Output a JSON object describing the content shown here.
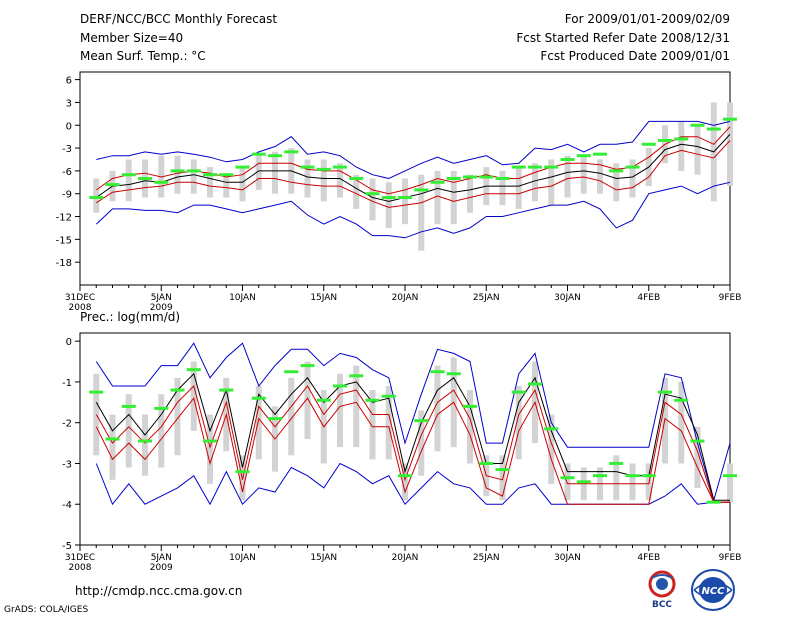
{
  "header": {
    "title": "DERF/NCC/BCC Monthly Forecast",
    "member_size": "Member Size=40",
    "variable": "Mean Surf. Temp.: °C",
    "period": "For 2009/01/01-2009/02/09",
    "started": "Fcst Started Refer Date 2008/12/31",
    "produced": "Fcst Produced Date 2009/01/01"
  },
  "footer": {
    "url": "http://cmdp.ncc.cma.gov.cn",
    "grads": "GrADS: COLA/IGES",
    "logo_bcc": "BCC",
    "logo_ncc": "NCC"
  },
  "chart_data": [
    {
      "type": "line",
      "title": "Mean Surf. Temp.: °C",
      "x_tick_labels": [
        "31DEC",
        "5JAN",
        "10JAN",
        "15JAN",
        "20JAN",
        "25JAN",
        "30JAN",
        "4FEB",
        "9FEB"
      ],
      "x_tick_sublabels": [
        "2008",
        "2009",
        "",
        "",
        "",
        "",
        "",
        "",
        ""
      ],
      "x_tick_day_index": [
        0,
        5,
        10,
        15,
        20,
        25,
        30,
        35,
        40
      ],
      "x_range": [
        0,
        40
      ],
      "ylim": [
        -21,
        7
      ],
      "y_ticks": [
        -18,
        -15,
        -12,
        -9,
        -6,
        -3,
        0,
        3,
        6
      ],
      "days": [
        1,
        2,
        3,
        4,
        5,
        6,
        7,
        8,
        9,
        10,
        11,
        12,
        13,
        14,
        15,
        16,
        17,
        18,
        19,
        20,
        21,
        22,
        23,
        24,
        25,
        26,
        27,
        28,
        29,
        30,
        31,
        32,
        33,
        34,
        35,
        36,
        37,
        38,
        39,
        40
      ],
      "series": [
        {
          "name": "max",
          "color": "#0000cc",
          "values": [
            -4.5,
            -4.0,
            -4.0,
            -3.5,
            -3.8,
            -3.5,
            -3.8,
            -4.2,
            -4.8,
            -4.5,
            -3.5,
            -2.8,
            -1.5,
            -3.8,
            -3.5,
            -4.0,
            -5.5,
            -6.5,
            -7.0,
            -6.0,
            -5.0,
            -4.2,
            -5.0,
            -4.5,
            -4.0,
            -5.2,
            -5.0,
            -3.0,
            -3.2,
            -2.5,
            -3.5,
            -2.5,
            -2.5,
            -2.2,
            0.5,
            0.5,
            0.5,
            0.5,
            0.0,
            0.5
          ]
        },
        {
          "name": "ensemble_upper",
          "color": "#cc0000",
          "values": [
            -8.5,
            -7.0,
            -6.5,
            -6.3,
            -6.8,
            -6.3,
            -6.0,
            -6.3,
            -6.8,
            -6.5,
            -5.0,
            -5.0,
            -5.0,
            -5.8,
            -6.0,
            -6.0,
            -7.2,
            -8.5,
            -9.0,
            -8.5,
            -7.8,
            -7.0,
            -7.5,
            -7.0,
            -6.5,
            -7.0,
            -7.0,
            -6.2,
            -5.5,
            -5.0,
            -5.0,
            -5.2,
            -5.8,
            -5.5,
            -4.2,
            -2.5,
            -1.5,
            -1.5,
            -2.5,
            -0.2
          ]
        },
        {
          "name": "ensemble_mean",
          "color": "#000000",
          "values": [
            -9.5,
            -8.0,
            -7.8,
            -7.3,
            -7.5,
            -6.8,
            -6.5,
            -7.0,
            -7.5,
            -7.5,
            -6.0,
            -6.0,
            -6.0,
            -6.8,
            -7.0,
            -7.0,
            -8.3,
            -9.5,
            -10.0,
            -9.5,
            -9.0,
            -8.3,
            -8.8,
            -8.5,
            -8.0,
            -8.0,
            -8.0,
            -7.3,
            -6.8,
            -6.2,
            -6.0,
            -6.3,
            -7.0,
            -6.8,
            -5.5,
            -3.2,
            -2.5,
            -2.8,
            -3.5,
            -1.2
          ]
        },
        {
          "name": "ensemble_lower",
          "color": "#cc0000",
          "values": [
            -10.2,
            -8.8,
            -8.5,
            -8.2,
            -8.0,
            -7.5,
            -7.5,
            -8.0,
            -8.2,
            -8.5,
            -7.0,
            -7.0,
            -7.5,
            -7.8,
            -8.0,
            -8.0,
            -9.0,
            -10.0,
            -10.8,
            -10.5,
            -10.2,
            -9.3,
            -10.0,
            -9.5,
            -9.0,
            -9.0,
            -9.0,
            -8.3,
            -8.0,
            -7.0,
            -6.8,
            -7.3,
            -8.5,
            -8.2,
            -6.8,
            -4.0,
            -3.3,
            -3.8,
            -4.3,
            -2.0
          ]
        },
        {
          "name": "min",
          "color": "#0000cc",
          "values": [
            -13.0,
            -11.0,
            -11.0,
            -11.2,
            -11.2,
            -11.5,
            -10.5,
            -10.5,
            -11.0,
            -11.5,
            -11.0,
            -10.5,
            -10.0,
            -11.8,
            -13.0,
            -12.0,
            -13.0,
            -14.5,
            -14.5,
            -14.8,
            -14.0,
            -13.5,
            -14.2,
            -13.5,
            -12.0,
            -12.0,
            -11.5,
            -11.0,
            -10.5,
            -10.5,
            -10.0,
            -11.0,
            -13.5,
            -12.5,
            -9.0,
            -8.5,
            -8.0,
            -9.0,
            -8.0,
            -7.5
          ]
        },
        {
          "name": "bar_top",
          "color": "#d3d3d3",
          "values": [
            -7.0,
            -6.0,
            -4.5,
            -4.5,
            -4.0,
            -4.0,
            -4.5,
            -5.5,
            -6.5,
            -5.5,
            -4.0,
            -3.5,
            -3.0,
            -4.5,
            -4.5,
            -5.0,
            -6.5,
            -7.0,
            -7.5,
            -7.0,
            -6.5,
            -6.0,
            -6.0,
            -6.5,
            -5.5,
            -6.0,
            -5.5,
            -5.0,
            -4.5,
            -4.0,
            -4.0,
            -4.5,
            -5.0,
            -4.5,
            -3.0,
            0.0,
            0.5,
            0.0,
            3.0,
            3.0
          ]
        },
        {
          "name": "bar_bottom",
          "color": "#d3d3d3",
          "values": [
            -11.5,
            -10.0,
            -10.0,
            -9.5,
            -9.5,
            -9.0,
            -9.0,
            -9.5,
            -9.5,
            -10.0,
            -8.5,
            -9.0,
            -9.0,
            -9.5,
            -10.0,
            -9.5,
            -11.0,
            -12.5,
            -13.5,
            -13.0,
            -16.5,
            -13.0,
            -13.0,
            -11.5,
            -10.5,
            -10.5,
            -11.0,
            -10.0,
            -10.5,
            -9.5,
            -9.0,
            -9.0,
            -10.0,
            -9.5,
            -8.0,
            -5.0,
            -6.0,
            -6.5,
            -10.0,
            -8.0
          ]
        },
        {
          "name": "control",
          "color": "#33ee33",
          "values": [
            -9.5,
            -7.8,
            -6.5,
            -7.0,
            -7.5,
            -6.0,
            -6.0,
            -6.5,
            -6.5,
            -5.5,
            -3.8,
            -4.0,
            -3.5,
            -5.5,
            -5.8,
            -5.5,
            -7.0,
            -9.0,
            -9.5,
            -9.5,
            -8.5,
            -7.5,
            -7.0,
            -6.8,
            -6.8,
            -7.0,
            -5.5,
            -5.5,
            -5.5,
            -4.5,
            -4.0,
            -3.8,
            -6.0,
            -5.5,
            -2.5,
            -2.0,
            -1.8,
            0.0,
            -0.5,
            0.8
          ]
        }
      ]
    },
    {
      "type": "line",
      "title": "Prec.: log(mm/d)",
      "x_tick_labels": [
        "31DEC",
        "5JAN",
        "10JAN",
        "15JAN",
        "20JAN",
        "25JAN",
        "30JAN",
        "4FEB",
        "9FEB"
      ],
      "x_tick_sublabels": [
        "2008",
        "2009",
        "",
        "",
        "",
        "",
        "",
        "",
        ""
      ],
      "x_tick_day_index": [
        0,
        5,
        10,
        15,
        20,
        25,
        30,
        35,
        40
      ],
      "x_range": [
        0,
        40
      ],
      "ylim": [
        -5,
        0.2
      ],
      "y_ticks": [
        -5,
        -4,
        -3,
        -2,
        -1,
        0
      ],
      "days": [
        1,
        2,
        3,
        4,
        5,
        6,
        7,
        8,
        9,
        10,
        11,
        12,
        13,
        14,
        15,
        16,
        17,
        18,
        19,
        20,
        21,
        22,
        23,
        24,
        25,
        26,
        27,
        28,
        29,
        30,
        31,
        32,
        33,
        34,
        35,
        36,
        37,
        38,
        39,
        40
      ],
      "series": [
        {
          "name": "max",
          "color": "#0000cc",
          "values": [
            -0.5,
            -1.1,
            -1.1,
            -1.1,
            -0.6,
            -0.6,
            -0.05,
            -0.9,
            -0.4,
            -0.05,
            -1.1,
            -0.6,
            -0.2,
            -0.2,
            -0.6,
            -0.3,
            -0.4,
            -0.7,
            -0.9,
            -2.5,
            -1.3,
            -0.2,
            -0.3,
            -0.5,
            -2.5,
            -2.5,
            -0.8,
            -0.3,
            -2.0,
            -2.6,
            -2.6,
            -2.6,
            -2.6,
            -2.6,
            -2.6,
            -0.8,
            -0.9,
            -2.5,
            -3.9,
            -2.5
          ]
        },
        {
          "name": "ensemble_upper",
          "color": "#000000",
          "values": [
            -1.5,
            -2.2,
            -1.8,
            -2.3,
            -1.8,
            -1.2,
            -0.8,
            -2.2,
            -1.2,
            -3.1,
            -1.3,
            -1.8,
            -1.3,
            -0.9,
            -1.5,
            -1.1,
            -1.0,
            -1.5,
            -1.4,
            -3.2,
            -2.0,
            -1.2,
            -0.9,
            -1.6,
            -3.0,
            -3.0,
            -1.5,
            -0.9,
            -2.2,
            -3.2,
            -3.2,
            -3.2,
            -3.2,
            -3.3,
            -3.3,
            -1.3,
            -1.4,
            -2.3,
            -3.9,
            -3.9
          ]
        },
        {
          "name": "ensemble_mean",
          "color": "#cc0000",
          "values": [
            -1.8,
            -2.5,
            -2.1,
            -2.5,
            -2.1,
            -1.5,
            -1.1,
            -2.6,
            -1.5,
            -3.4,
            -1.6,
            -2.1,
            -1.6,
            -1.1,
            -1.8,
            -1.3,
            -1.2,
            -1.8,
            -1.8,
            -3.4,
            -2.3,
            -1.5,
            -1.2,
            -1.9,
            -3.3,
            -3.4,
            -1.8,
            -1.2,
            -2.5,
            -3.5,
            -3.5,
            -3.5,
            -3.5,
            -3.5,
            -3.5,
            -1.5,
            -1.8,
            -2.7,
            -3.95,
            -3.95
          ]
        },
        {
          "name": "ensemble_lower",
          "color": "#cc0000",
          "values": [
            -2.1,
            -2.9,
            -2.5,
            -2.9,
            -2.4,
            -1.9,
            -1.4,
            -3.0,
            -1.8,
            -3.7,
            -1.9,
            -2.4,
            -1.9,
            -1.4,
            -2.1,
            -1.6,
            -1.5,
            -2.1,
            -2.1,
            -3.7,
            -2.7,
            -1.8,
            -1.5,
            -2.3,
            -3.6,
            -3.8,
            -2.2,
            -1.5,
            -2.9,
            -4.0,
            -4.0,
            -4.0,
            -4.0,
            -4.0,
            -4.0,
            -1.9,
            -2.2,
            -3.1,
            -3.95,
            -3.95
          ]
        },
        {
          "name": "min",
          "color": "#0000cc",
          "values": [
            -3.0,
            -4.0,
            -3.5,
            -4.0,
            -3.8,
            -3.6,
            -3.3,
            -4.0,
            -3.2,
            -4.0,
            -3.6,
            -3.7,
            -3.1,
            -3.3,
            -3.6,
            -3.0,
            -3.2,
            -3.5,
            -3.3,
            -4.0,
            -3.6,
            -3.2,
            -3.5,
            -3.6,
            -4.0,
            -4.0,
            -3.6,
            -3.5,
            -4.0,
            -4.0,
            -4.0,
            -4.0,
            -4.0,
            -4.0,
            -4.0,
            -3.8,
            -3.5,
            -4.0,
            -3.95,
            -3.95
          ]
        },
        {
          "name": "bar_top",
          "color": "#d3d3d3",
          "values": [
            -0.8,
            -1.8,
            -1.3,
            -1.8,
            -1.3,
            -0.9,
            -0.5,
            -1.8,
            -0.9,
            -2.8,
            -1.1,
            -1.6,
            -0.9,
            -0.5,
            -1.2,
            -0.8,
            -0.6,
            -1.2,
            -1.1,
            -3.0,
            -1.7,
            -0.6,
            -0.4,
            -1.2,
            -2.8,
            -2.8,
            -1.1,
            -0.5,
            -1.8,
            -3.0,
            -3.1,
            -3.1,
            -2.8,
            -3.0,
            -3.0,
            -0.9,
            -1.0,
            -2.1,
            -3.9,
            -3.0
          ]
        },
        {
          "name": "bar_bottom",
          "color": "#d3d3d3",
          "values": [
            -2.8,
            -3.4,
            -3.1,
            -3.3,
            -3.1,
            -2.8,
            -2.2,
            -3.5,
            -2.7,
            -3.9,
            -2.9,
            -3.2,
            -2.8,
            -2.4,
            -3.0,
            -2.6,
            -2.6,
            -2.9,
            -2.9,
            -3.9,
            -3.3,
            -2.7,
            -2.6,
            -3.0,
            -3.8,
            -3.9,
            -2.9,
            -2.5,
            -3.5,
            -3.9,
            -3.9,
            -3.9,
            -3.9,
            -3.9,
            -3.9,
            -3.0,
            -3.0,
            -3.6,
            -3.95,
            -3.95
          ]
        },
        {
          "name": "control",
          "color": "#33ee33",
          "values": [
            -1.25,
            -2.4,
            -1.6,
            -2.45,
            -1.65,
            -1.2,
            -0.7,
            -2.45,
            -1.2,
            -3.2,
            -1.4,
            -1.9,
            -0.75,
            -0.6,
            -1.45,
            -1.1,
            -0.85,
            -1.45,
            -1.35,
            -3.3,
            -1.95,
            -0.75,
            -0.8,
            -1.6,
            -3.0,
            -3.15,
            -1.25,
            -1.05,
            -2.15,
            -3.35,
            -3.45,
            -3.3,
            -3.0,
            -3.3,
            -3.3,
            -1.25,
            -1.45,
            -2.45,
            -3.95,
            -3.3
          ]
        }
      ]
    }
  ]
}
